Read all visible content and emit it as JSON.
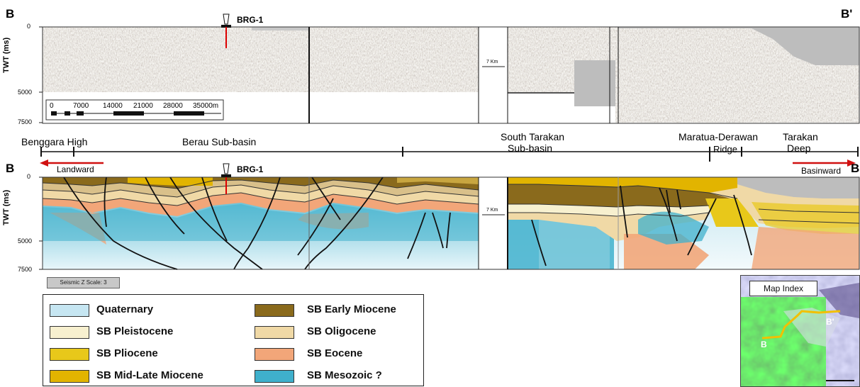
{
  "top_section": {
    "left_label": "B",
    "right_label": "B'",
    "well": "BRG-1",
    "y_axis_title": "TWT (ms)",
    "y_ticks": [
      "0",
      "5000",
      "7500"
    ],
    "km_marker": "7 Km",
    "scale_ticks": [
      "0",
      "7000",
      "14000",
      "21000",
      "28000",
      "35000m"
    ]
  },
  "regions": {
    "benggara": "Benggara High",
    "berau": "Berau Sub-basin",
    "south_tarakan_1": "South Tarakan",
    "south_tarakan_2": "Sub-basin",
    "maratua": "Maratua-Derawan",
    "ridge": "Ridge",
    "tarakan_1": "Tarakan",
    "tarakan_2": "Deep",
    "landward": "Landward",
    "basinward": "Basinward"
  },
  "bottom_section": {
    "left_label": "B",
    "right_label": "B",
    "well": "BRG-1",
    "y_axis_title": "TWT (ms)",
    "y_ticks": [
      "0",
      "5000",
      "7500"
    ],
    "km_marker": "7 Km",
    "z_scale": "Seismic Z Scale: 3"
  },
  "legend": [
    {
      "label": "Quaternary",
      "color": "#c6e6f2"
    },
    {
      "label": "SB Pleistocene",
      "color": "#f7f0cf"
    },
    {
      "label": "SB Pliocene",
      "color": "#e8c81a"
    },
    {
      "label": "SB Mid-Late Miocene",
      "color": "#e2b400"
    },
    {
      "label": "SB Early Miocene",
      "color": "#8a6a1c"
    },
    {
      "label": "SB Oligocene",
      "color": "#f0d9a6"
    },
    {
      "label": "SB Eocene",
      "color": "#f2a679"
    },
    {
      "label": "SB Mesozoic ?",
      "color": "#3fb0cc"
    }
  ],
  "map_index": {
    "title": "Map Index",
    "label_b": "B",
    "label_b_prime": "B'"
  }
}
